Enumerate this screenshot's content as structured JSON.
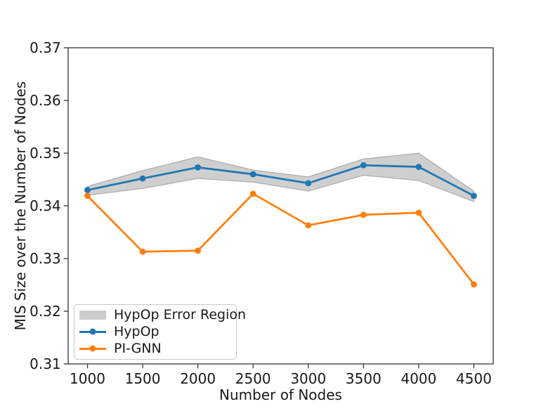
{
  "chart_data": {
    "type": "line",
    "title": "",
    "xlabel": "Number of Nodes",
    "ylabel": "MIS Size over the Number of Nodes",
    "xlim": [
      825,
      4675
    ],
    "ylim": [
      0.31,
      0.37
    ],
    "grid": false,
    "x": [
      1000,
      1500,
      2000,
      2500,
      3000,
      3500,
      4000,
      4500
    ],
    "xticks": [
      {
        "value": 1000,
        "label": "1000"
      },
      {
        "value": 1500,
        "label": "1500"
      },
      {
        "value": 2000,
        "label": "2000"
      },
      {
        "value": 2500,
        "label": "2500"
      },
      {
        "value": 3000,
        "label": "3000"
      },
      {
        "value": 3500,
        "label": "3500"
      },
      {
        "value": 4000,
        "label": "4000"
      },
      {
        "value": 4500,
        "label": "4500"
      }
    ],
    "yticks": [
      {
        "value": 0.31,
        "label": "0.31"
      },
      {
        "value": 0.32,
        "label": "0.32"
      },
      {
        "value": 0.33,
        "label": "0.33"
      },
      {
        "value": 0.34,
        "label": "0.34"
      },
      {
        "value": 0.35,
        "label": "0.35"
      },
      {
        "value": 0.36,
        "label": "0.36"
      },
      {
        "value": 0.37,
        "label": "0.37"
      }
    ],
    "series": [
      {
        "name": "HypOp",
        "color": "#1f77b4",
        "marker": "circle",
        "values": [
          0.343,
          0.3452,
          0.3473,
          0.346,
          0.3443,
          0.3477,
          0.3474,
          0.3419
        ]
      },
      {
        "name": "PI-GNN",
        "color": "#ff7f0e",
        "marker": "circle",
        "values": [
          0.3419,
          0.3313,
          0.3315,
          0.3423,
          0.3363,
          0.3383,
          0.3387,
          0.3251
        ]
      }
    ],
    "band": {
      "name": "HypOp Error Region",
      "color": "#808080",
      "fill_opacity": 0.38,
      "edge_opacity": 0.55,
      "upper": [
        0.3437,
        0.3467,
        0.3493,
        0.3468,
        0.3455,
        0.3489,
        0.35,
        0.3428
      ],
      "lower": [
        0.342,
        0.3433,
        0.3452,
        0.3445,
        0.3428,
        0.3458,
        0.3448,
        0.3408
      ]
    },
    "legend": {
      "position": "lower-left",
      "entries": [
        {
          "label": "HypOp Error Region",
          "type": "patch",
          "color": "#cccccc"
        },
        {
          "label": "HypOp",
          "type": "line-marker",
          "color": "#1f77b4"
        },
        {
          "label": "PI-GNN",
          "type": "line-marker",
          "color": "#ff7f0e"
        }
      ]
    },
    "axis_color": "#363636"
  }
}
